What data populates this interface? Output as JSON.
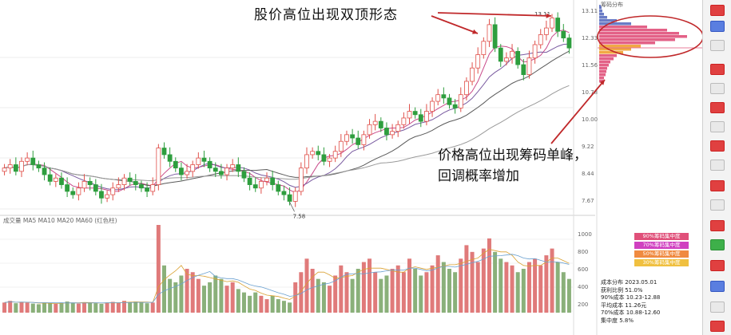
{
  "annotations": {
    "top": "股价高位出现双顶形态",
    "bottom": "价格高位出现筹码单峰，回调概率增加"
  },
  "colors": {
    "up": "#e0504a",
    "down": "#2e9e3e",
    "ma_short": "#c94b8a",
    "ma_mid": "#7a5ba0",
    "ma_long": "#5a5a5a",
    "arrow": "#c0282a",
    "circle": "#c0282a",
    "chip_main": "#e0507a",
    "chip_blue": "#5a6ec0",
    "chip_orange": "#f0a030",
    "volume_up": "#e07a7a",
    "volume_down": "#8ab07a"
  },
  "price_labels": {
    "high": "13.11",
    "low": "7.58"
  },
  "chart_data": {
    "type": "candlestick",
    "series_note": "",
    "close": [
      8.6,
      8.7,
      8.5,
      8.8,
      8.9,
      8.7,
      8.6,
      8.4,
      8.2,
      8.3,
      8.1,
      7.9,
      7.8,
      8.0,
      8.2,
      8.1,
      7.9,
      7.7,
      7.8,
      8.0,
      8.1,
      8.3,
      8.2,
      8.1,
      8.0,
      7.9,
      8.1,
      9.2,
      9.0,
      8.8,
      8.6,
      8.4,
      8.5,
      8.7,
      8.9,
      8.8,
      8.6,
      8.5,
      8.4,
      8.6,
      8.7,
      8.5,
      8.3,
      8.1,
      8.0,
      8.2,
      8.3,
      8.1,
      7.9,
      7.8,
      7.6,
      7.9,
      8.6,
      9.0,
      9.1,
      9.0,
      8.8,
      8.9,
      9.1,
      9.4,
      9.6,
      9.5,
      9.3,
      9.6,
      9.9,
      10.0,
      9.8,
      9.6,
      9.7,
      9.9,
      10.1,
      10.3,
      10.2,
      10.0,
      10.3,
      10.6,
      10.8,
      10.7,
      10.5,
      10.4,
      10.8,
      11.2,
      11.6,
      12.0,
      12.4,
      12.9,
      12.2,
      11.8,
      11.9,
      12.1,
      11.7,
      11.4,
      11.9,
      12.3,
      12.6,
      12.8,
      13.1,
      12.7,
      12.5,
      12.2
    ],
    "high_marker": 13.11,
    "low_marker": 7.58,
    "volume": [
      0.3,
      0.35,
      0.28,
      0.32,
      0.3,
      0.27,
      0.25,
      0.3,
      0.28,
      0.26,
      0.3,
      0.33,
      0.29,
      0.27,
      0.31,
      0.3,
      0.28,
      0.26,
      0.3,
      0.32,
      0.29,
      0.35,
      0.3,
      0.33,
      0.31,
      0.28,
      0.3,
      2.6,
      1.4,
      1.0,
      0.9,
      1.1,
      1.3,
      1.2,
      1.0,
      0.8,
      0.9,
      1.1,
      1.0,
      0.8,
      0.9,
      0.7,
      0.6,
      0.5,
      0.6,
      0.5,
      0.4,
      0.5,
      0.4,
      0.35,
      0.3,
      0.9,
      1.2,
      1.6,
      1.3,
      1.0,
      0.9,
      0.8,
      1.1,
      1.4,
      1.2,
      1.0,
      1.3,
      1.5,
      1.6,
      1.2,
      1.0,
      1.1,
      1.3,
      1.4,
      1.2,
      1.6,
      1.3,
      1.1,
      1.2,
      1.4,
      1.7,
      1.5,
      1.3,
      1.2,
      1.6,
      2.0,
      1.8,
      1.5,
      1.9,
      2.2,
      1.8,
      1.6,
      1.5,
      1.4,
      1.2,
      1.3,
      1.5,
      1.6,
      1.4,
      1.7,
      1.9,
      1.5,
      1.2,
      1.0
    ],
    "axis_labels": [
      "13.11",
      "12.33",
      "11.56",
      "10.78",
      "10.00",
      "9.22",
      "8.44",
      "7.67"
    ],
    "volume_axis_labels": [
      "1000",
      "800",
      "600",
      "400",
      "200"
    ],
    "volume_header": "成交量  MA5 MA10 MA20 MA60  (红色柱)"
  },
  "chip_panel": {
    "title": "筹码分布",
    "legend": [
      "90%筹码集中度",
      "70%筹码集中度",
      "50%筹码集中度",
      "30%筹码集中度"
    ],
    "stats": [
      "成本分布  2023.05.01",
      "获利比例        51.0%",
      "90%成本  10.23-12.88",
      "平均成本       11.26元",
      "70%成本  10.88-12.60",
      "集中度         5.8%"
    ]
  }
}
